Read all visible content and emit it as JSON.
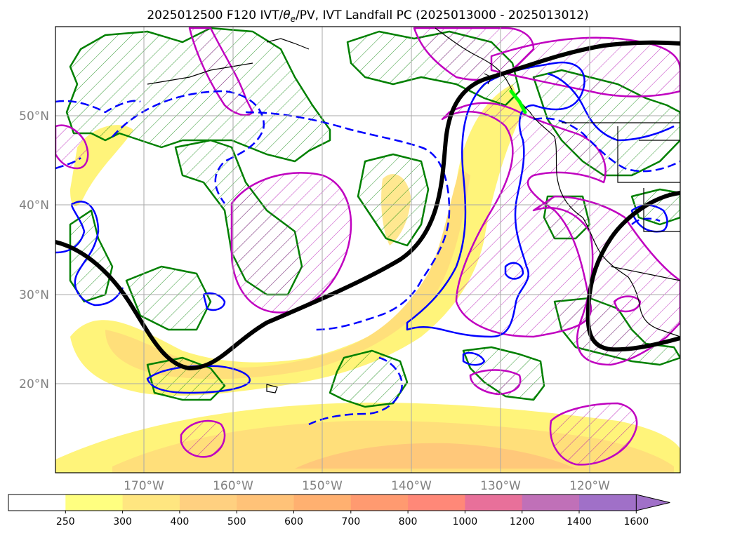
{
  "title": "2025012500 F120 IVT/θe/PV, IVT Landfall PC (2025013000 - 2025013012)",
  "title_parts": {
    "pre": "2025012500 F120 IVT/",
    "theta": "θ",
    "theta_sub": "e",
    "post": "/PV, IVT Landfall PC (2025013000 - 2025013012)"
  },
  "map": {
    "lat_labels": [
      "50°N",
      "40°N",
      "30°N",
      "20°N"
    ],
    "lon_labels": [
      "170°W",
      "160°W",
      "150°W",
      "140°W",
      "130°W",
      "120°W"
    ],
    "lat_range": [
      10,
      60
    ],
    "lon_range": [
      -180,
      -110
    ],
    "colors": {
      "ivt_fill": "#fff47a",
      "ivt_fill_mid": "#ffdf7a",
      "ivt_fill_high": "#ffc87a",
      "theta_e_contour": "#0000ff",
      "pv_contour": "#c000c0",
      "hatch_green": "#008000",
      "landfall_pc": "#000000",
      "landfall_highlight": "#00ff00",
      "coastline": "#000000"
    }
  },
  "colorbar": {
    "levels": [
      "250",
      "300",
      "400",
      "500",
      "600",
      "700",
      "800",
      "1000",
      "1200",
      "1400",
      "1600"
    ],
    "colors": [
      "#ffffff",
      "#ffff80",
      "#ffe680",
      "#ffd080",
      "#ffc278",
      "#ffb070",
      "#ff9a70",
      "#ff8878",
      "#e8709a",
      "#c070b8",
      "#a070c8"
    ],
    "extend": "max"
  }
}
